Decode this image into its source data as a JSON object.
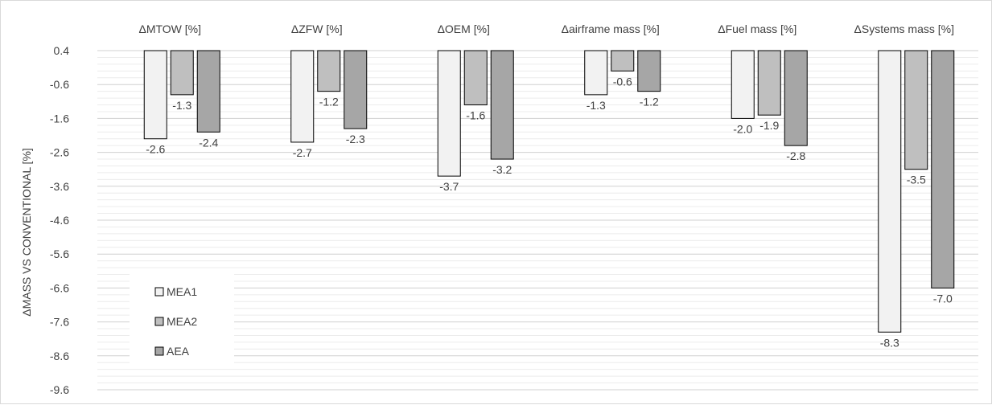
{
  "chart_data": {
    "type": "bar",
    "title": "",
    "xlabel": "",
    "ylabel": "ΔMASS VS CONVENTIONAL [%]",
    "categories": [
      "ΔMTOW [%]",
      "ΔZFW [%]",
      "ΔOEM [%]",
      "Δairframe mass [%]",
      "ΔFuel mass [%]",
      "ΔSystems mass [%]"
    ],
    "category_axis_position": "top",
    "series": [
      {
        "name": "MEA1",
        "color": "#f2f2f2",
        "values": [
          -2.6,
          -2.7,
          -3.7,
          -1.3,
          -2.0,
          -8.3
        ]
      },
      {
        "name": "MEA2",
        "color": "#bfbfbf",
        "values": [
          -1.3,
          -1.2,
          -1.6,
          -0.6,
          -1.9,
          -3.5
        ]
      },
      {
        "name": "AEA",
        "color": "#a6a6a6",
        "values": [
          -2.4,
          -2.3,
          -3.2,
          -1.2,
          -2.8,
          -7.0
        ]
      }
    ],
    "ylim": [
      -9.6,
      0.4
    ],
    "yticks": [
      0.4,
      -0.6,
      -1.6,
      -2.6,
      -3.6,
      -4.6,
      -5.6,
      -6.6,
      -7.6,
      -8.6,
      -9.6
    ],
    "ytick_labels": [
      "0.4",
      "-0.6",
      "-1.6",
      "-2.6",
      "-3.6",
      "-4.6",
      "-5.6",
      "-6.6",
      "-7.6",
      "-8.6",
      "-9.6"
    ],
    "minor_grid_step": 0.2,
    "grid": true,
    "legend_position": "bottom-left",
    "data_labels": true
  }
}
